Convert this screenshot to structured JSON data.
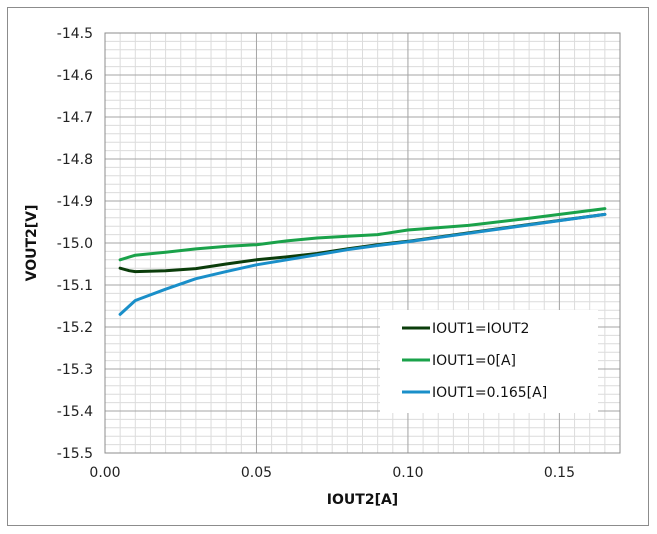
{
  "chart_data": {
    "type": "line",
    "title": "",
    "xlabel": "IOUT2[A]",
    "ylabel": "VOUT2[V]",
    "xlim": [
      0.0,
      0.17
    ],
    "ylim": [
      -15.5,
      -14.5
    ],
    "x_ticks": [
      "0.00",
      "0.05",
      "0.10",
      "0.15"
    ],
    "y_ticks": [
      "-14.5",
      "-14.6",
      "-14.7",
      "-14.8",
      "-14.9",
      "-15.0",
      "-15.1",
      "-15.2",
      "-15.3",
      "-15.4",
      "-15.5"
    ],
    "grid": true,
    "legend_position": "bottom-right",
    "series": [
      {
        "name": "IOUT1=IOUT2",
        "color": "#0b3d0b",
        "x": [
          0.005,
          0.008,
          0.01,
          0.02,
          0.03,
          0.04,
          0.05,
          0.06,
          0.07,
          0.08,
          0.09,
          0.1,
          0.12,
          0.14,
          0.165
        ],
        "y": [
          -15.06,
          -15.066,
          -15.068,
          -15.066,
          -15.061,
          -15.05,
          -15.04,
          -15.033,
          -15.025,
          -15.014,
          -15.004,
          -14.996,
          -14.976,
          -14.956,
          -14.932
        ]
      },
      {
        "name": "IOUT1=0[A]",
        "color": "#1aa24a",
        "x": [
          0.005,
          0.01,
          0.02,
          0.03,
          0.04,
          0.05,
          0.06,
          0.07,
          0.08,
          0.09,
          0.1,
          0.12,
          0.14,
          0.165
        ],
        "y": [
          -15.04,
          -15.029,
          -15.022,
          -15.014,
          -15.008,
          -15.004,
          -14.995,
          -14.988,
          -14.984,
          -14.98,
          -14.969,
          -14.958,
          -14.941,
          -14.918
        ]
      },
      {
        "name": "IOUT1=0.165[A]",
        "color": "#1a8fc9",
        "x": [
          0.005,
          0.01,
          0.02,
          0.03,
          0.04,
          0.05,
          0.06,
          0.07,
          0.08,
          0.09,
          0.1,
          0.12,
          0.14,
          0.165
        ],
        "y": [
          -15.17,
          -15.137,
          -15.11,
          -15.085,
          -15.068,
          -15.052,
          -15.04,
          -15.028,
          -15.016,
          -15.006,
          -14.997,
          -14.977,
          -14.957,
          -14.932
        ]
      }
    ]
  }
}
